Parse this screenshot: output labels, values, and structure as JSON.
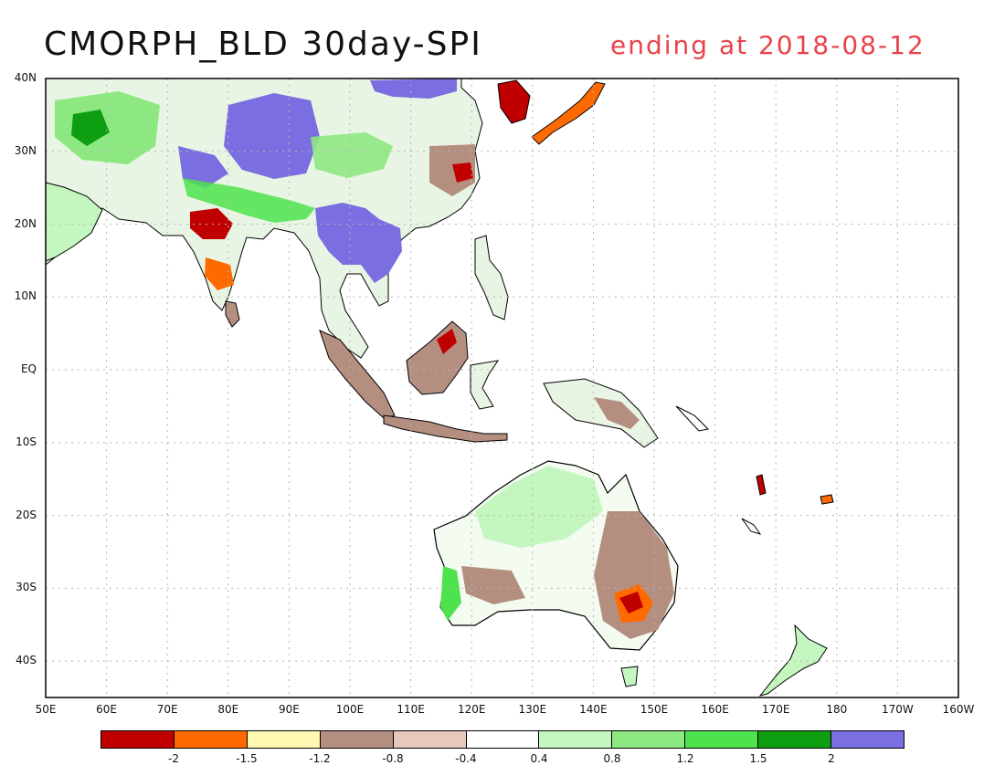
{
  "title": "CMORPH_BLD 30day-SPI",
  "subtitle": "ending at 2018-08-12",
  "colors": {
    "title": "#111111",
    "subtitle": "#e8434a",
    "grid": "#b5b5b5",
    "coast": "#000000"
  },
  "map": {
    "lat_labels": [
      "40N",
      "30N",
      "20N",
      "10N",
      "EQ",
      "10S",
      "20S",
      "30S",
      "40S"
    ],
    "lon_labels": [
      "50E",
      "60E",
      "70E",
      "80E",
      "90E",
      "100E",
      "110E",
      "120E",
      "130E",
      "140E",
      "150E",
      "160E",
      "170E",
      "180",
      "170W",
      "160W"
    ],
    "lat_range": [
      -45,
      40
    ],
    "lon_range": [
      50,
      200
    ]
  },
  "legend": {
    "colors": [
      "#c00000",
      "#ff6a00",
      "#fff8b0",
      "#b48f80",
      "#e7c8bc",
      "#ffffff",
      "#c4f7c0",
      "#8ee882",
      "#4ee24e",
      "#0e9e12",
      "#7a6ee0"
    ],
    "labels": [
      "-2",
      "-1.5",
      "-1.2",
      "-0.8",
      "-0.4",
      "0.4",
      "0.8",
      "1.2",
      "1.5",
      "2"
    ]
  }
}
